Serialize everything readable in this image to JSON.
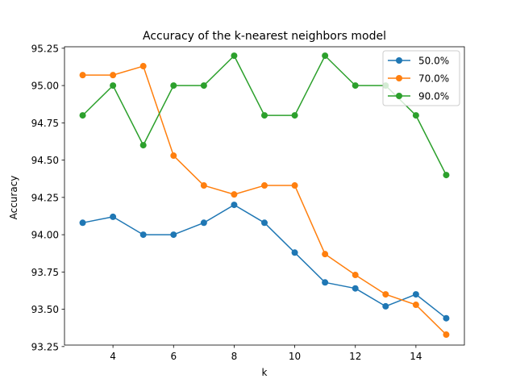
{
  "chart_data": {
    "type": "line",
    "title": "Accuracy of the k-nearest neighbors model",
    "xlabel": "k",
    "ylabel": "Accuracy",
    "x": [
      3,
      4,
      5,
      6,
      7,
      8,
      9,
      10,
      11,
      12,
      13,
      14,
      15
    ],
    "xlim": [
      2.4,
      15.6
    ],
    "ylim": [
      93.26,
      95.26
    ],
    "xticks": [
      4,
      6,
      8,
      10,
      12,
      14
    ],
    "yticks": [
      93.25,
      93.5,
      93.75,
      94.0,
      94.25,
      94.5,
      94.75,
      95.0,
      95.25
    ],
    "ytick_labels": [
      "93.25",
      "93.50",
      "93.75",
      "94.00",
      "94.25",
      "94.50",
      "94.75",
      "95.00",
      "95.25"
    ],
    "grid": false,
    "legend_position": "top-right",
    "series": [
      {
        "name": "50.0%",
        "color": "#1f77b4",
        "marker": "circle",
        "values": [
          94.08,
          94.12,
          94.0,
          94.0,
          94.08,
          94.2,
          94.08,
          93.88,
          93.68,
          93.64,
          93.52,
          93.6,
          93.44
        ]
      },
      {
        "name": "70.0%",
        "color": "#ff7f0e",
        "marker": "circle",
        "values": [
          95.07,
          95.07,
          95.13,
          94.53,
          94.33,
          94.27,
          94.33,
          94.33,
          93.87,
          93.73,
          93.6,
          93.53,
          93.33
        ]
      },
      {
        "name": "90.0%",
        "color": "#2ca02c",
        "marker": "circle",
        "values": [
          94.8,
          95.0,
          94.6,
          95.0,
          95.0,
          95.2,
          94.8,
          94.8,
          95.2,
          95.0,
          95.0,
          94.8,
          94.4
        ]
      }
    ]
  }
}
